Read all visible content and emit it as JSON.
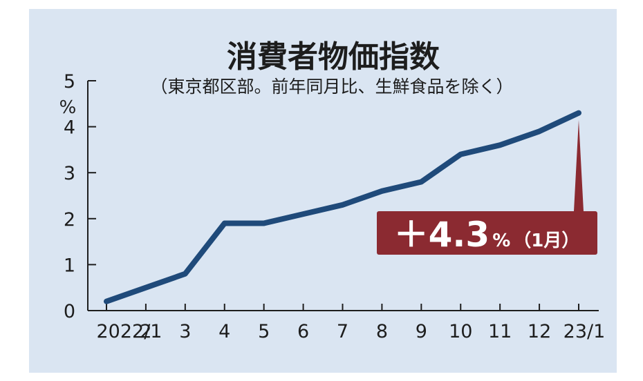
{
  "chart_data": {
    "type": "line",
    "title": "消費者物価指数",
    "subtitle": "（東京都区部。前年同月比、生鮮食品を除く）",
    "ylabel": "%",
    "ylim": [
      0,
      5
    ],
    "yticks": [
      "0",
      "1",
      "2",
      "3",
      "4",
      "5"
    ],
    "categories": [
      "2022/1",
      "2",
      "3",
      "4",
      "5",
      "6",
      "7",
      "8",
      "9",
      "10",
      "11",
      "12",
      "23/1"
    ],
    "series": [
      {
        "values": [
          0.2,
          0.5,
          0.8,
          1.9,
          1.9,
          2.1,
          2.3,
          2.6,
          2.8,
          3.4,
          3.6,
          3.9,
          4.3
        ]
      }
    ],
    "grid": false,
    "annotation": {
      "value": "＋4.3",
      "unit": "%",
      "note": "（1月）",
      "target_index": 12
    },
    "colors": {
      "background": "#dae5f2",
      "line": "#1f4a7a",
      "callout": "#8b2a31",
      "axis": "#1d1d1d"
    }
  }
}
